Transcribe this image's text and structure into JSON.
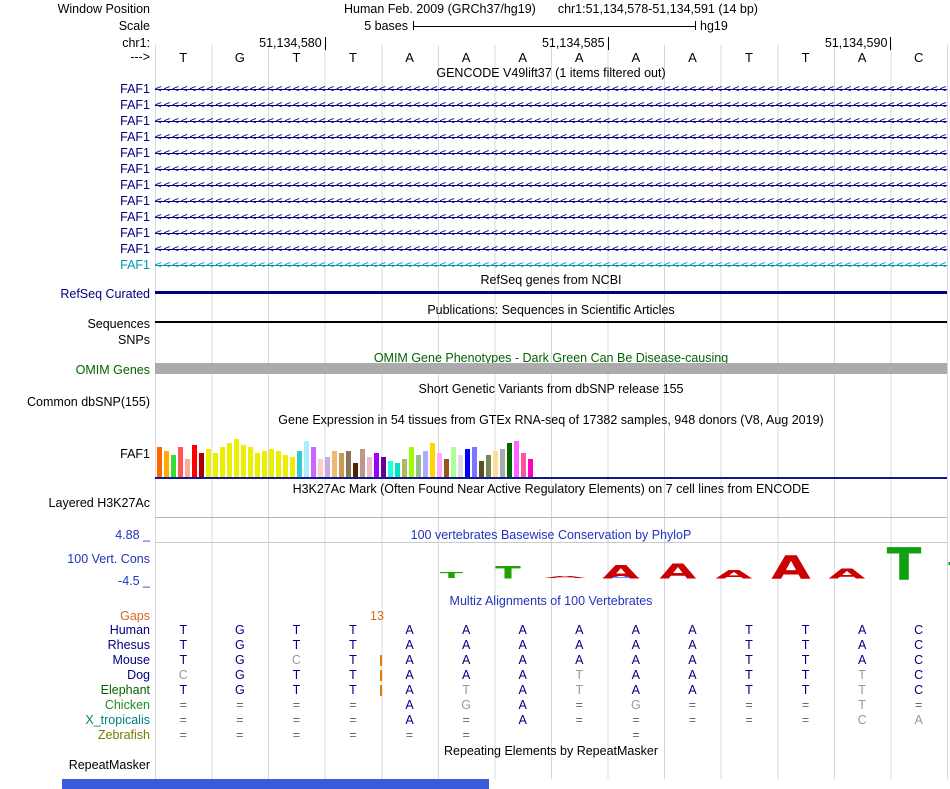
{
  "window": {
    "assembly_title": "Human Feb. 2009 (GRCh37/hg19)",
    "position": "chr1:51,134,578-51,134,591 (14 bp)",
    "scale_bases": "5 bases",
    "assembly_short": "hg19"
  },
  "gutter": {
    "window_position": "Window Position",
    "scale": "Scale",
    "chromosome": "chr1:",
    "direction": "--->"
  },
  "ruler": {
    "ticks": [
      {
        "label": "51,134,580",
        "after_col": 3
      },
      {
        "label": "51,134,585",
        "after_col": 8
      },
      {
        "label": "51,134,590",
        "after_col": 13
      }
    ],
    "bases": [
      "T",
      "G",
      "T",
      "T",
      "A",
      "A",
      "A",
      "A",
      "A",
      "A",
      "T",
      "T",
      "A",
      "C"
    ]
  },
  "tracks": {
    "gencode": {
      "title": "GENCODE V49lift37 (1 items filtered out)",
      "arrows": "<<<<<<<<<<<<<<<<<<<<<<<<<<<<<<<<<<<<<<<<<<<<<<<<<<<<<<<<<<<<<<<<<<<<<<<<<<<<<<<<<<<<<<<<<<<<<<<<<<<<<<<<<<<<<<",
      "items": [
        {
          "label": "FAF1",
          "color": "#000080"
        },
        {
          "label": "FAF1",
          "color": "#000080"
        },
        {
          "label": "FAF1",
          "color": "#000080"
        },
        {
          "label": "FAF1",
          "color": "#000080"
        },
        {
          "label": "FAF1",
          "color": "#000080"
        },
        {
          "label": "FAF1",
          "color": "#000080"
        },
        {
          "label": "FAF1",
          "color": "#000080"
        },
        {
          "label": "FAF1",
          "color": "#000080"
        },
        {
          "label": "FAF1",
          "color": "#000080"
        },
        {
          "label": "FAF1",
          "color": "#000080"
        },
        {
          "label": "FAF1",
          "color": "#000080"
        },
        {
          "label": "FAF1",
          "color": "#0099AA"
        }
      ]
    },
    "refseq": {
      "title": "RefSeq genes from NCBI",
      "label": "RefSeq Curated"
    },
    "publications": {
      "title": "Publications: Sequences in Scientific Articles",
      "label": "Sequences"
    },
    "snps": {
      "label": "SNPs"
    },
    "omim": {
      "title": "OMIM Gene Phenotypes - Dark Green Can Be Disease-causing",
      "label": "OMIM Genes"
    },
    "dbsnp": {
      "title": "Short Genetic Variants from dbSNP release 155",
      "label": "Common dbSNP(155)"
    },
    "gtex": {
      "title": "Gene Expression in 54 tissues from GTEx RNA-seq of 17382 samples, 948 donors (V8, Aug 2019)",
      "label": "FAF1",
      "bars": [
        {
          "c": "#FF6600",
          "h": 30
        },
        {
          "c": "#FFAA00",
          "h": 26
        },
        {
          "c": "#33DD33",
          "h": 22
        },
        {
          "c": "#FF5555",
          "h": 30
        },
        {
          "c": "#FFAA99",
          "h": 18
        },
        {
          "c": "#FF0000",
          "h": 32
        },
        {
          "c": "#AA0000",
          "h": 24
        },
        {
          "c": "#EEEE00",
          "h": 28
        },
        {
          "c": "#EEEE00",
          "h": 24
        },
        {
          "c": "#EEEE00",
          "h": 30
        },
        {
          "c": "#EEEE00",
          "h": 34
        },
        {
          "c": "#EEEE00",
          "h": 38
        },
        {
          "c": "#EEEE00",
          "h": 32
        },
        {
          "c": "#EEEE00",
          "h": 30
        },
        {
          "c": "#EEEE00",
          "h": 24
        },
        {
          "c": "#EEEE00",
          "h": 26
        },
        {
          "c": "#EEEE00",
          "h": 28
        },
        {
          "c": "#EEEE00",
          "h": 26
        },
        {
          "c": "#EEEE00",
          "h": 22
        },
        {
          "c": "#EEEE00",
          "h": 20
        },
        {
          "c": "#33CCCC",
          "h": 26
        },
        {
          "c": "#AAEEFF",
          "h": 36
        },
        {
          "c": "#CC66FF",
          "h": 30
        },
        {
          "c": "#FFCCCC",
          "h": 18
        },
        {
          "c": "#CCAADD",
          "h": 20
        },
        {
          "c": "#EEBB77",
          "h": 26
        },
        {
          "c": "#CC9955",
          "h": 24
        },
        {
          "c": "#8B7355",
          "h": 26
        },
        {
          "c": "#552200",
          "h": 14
        },
        {
          "c": "#BB9988",
          "h": 28
        },
        {
          "c": "#EEBBCC",
          "h": 20
        },
        {
          "c": "#9900FF",
          "h": 24
        },
        {
          "c": "#660099",
          "h": 20
        },
        {
          "c": "#22FFDD",
          "h": 16
        },
        {
          "c": "#00E5C0",
          "h": 14
        },
        {
          "c": "#AABB66",
          "h": 18
        },
        {
          "c": "#99FF00",
          "h": 30
        },
        {
          "c": "#99BB88",
          "h": 22
        },
        {
          "c": "#AAAAFF",
          "h": 26
        },
        {
          "c": "#FFD700",
          "h": 34
        },
        {
          "c": "#FFAAFF",
          "h": 24
        },
        {
          "c": "#995522",
          "h": 18
        },
        {
          "c": "#AAFF99",
          "h": 30
        },
        {
          "c": "#DDDDDD",
          "h": 22
        },
        {
          "c": "#0000FF",
          "h": 28
        },
        {
          "c": "#7777FF",
          "h": 30
        },
        {
          "c": "#555522",
          "h": 16
        },
        {
          "c": "#778855",
          "h": 22
        },
        {
          "c": "#FFDD99",
          "h": 26
        },
        {
          "c": "#AAAAAA",
          "h": 28
        },
        {
          "c": "#006600",
          "h": 34
        },
        {
          "c": "#FF66FF",
          "h": 36
        },
        {
          "c": "#FF5599",
          "h": 24
        },
        {
          "c": "#FF00BB",
          "h": 18
        }
      ]
    },
    "h3k27ac": {
      "title": "H3K27Ac Mark (Often Found Near Active Regulatory Elements) on 7 cell lines from ENCODE",
      "label": "Layered H3K27Ac"
    },
    "phylop": {
      "title": "100 vertebrates Basewise Conservation by PhyloP",
      "label": "100 Vert. Cons",
      "scale_max": "4.88 _",
      "scale_min": "-4.5 _",
      "glyphs": [
        {
          "col": 3,
          "ch": "T",
          "color": "#1FA300",
          "sx": 1.0,
          "sy": 0.22
        },
        {
          "col": 4,
          "ch": "T",
          "color": "#1FA300",
          "sx": 1.1,
          "sy": 0.5
        },
        {
          "col": 5,
          "ch": "A",
          "color": "#CC0000",
          "sx": 1.6,
          "sy": 0.08
        },
        {
          "col": 6,
          "ch": "A",
          "color": "#3344EE",
          "sx": 1.5,
          "sy": 0.14
        },
        {
          "col": 6,
          "ch": "A",
          "color": "#CC0000",
          "sx": 1.4,
          "sy": 0.55
        },
        {
          "col": 7,
          "ch": "A",
          "color": "#CC0000",
          "sx": 1.4,
          "sy": 0.6
        },
        {
          "col": 8,
          "ch": "A",
          "color": "#CC0000",
          "sx": 1.4,
          "sy": 0.35
        },
        {
          "col": 9,
          "ch": "A",
          "color": "#CC0000",
          "sx": 1.5,
          "sy": 0.95
        },
        {
          "col": 10,
          "ch": "A",
          "color": "#CC0000",
          "sx": 1.4,
          "sy": 0.4
        },
        {
          "col": 11,
          "ch": "T",
          "color": "#12A012",
          "sx": 1.5,
          "sy": 1.3
        },
        {
          "col": 12,
          "ch": "T",
          "color": "#12A012",
          "sx": 1.1,
          "sy": 0.65
        },
        {
          "col": 13,
          "ch": "A",
          "color": "#CC0000",
          "sx": 1.8,
          "sy": 0.16
        },
        {
          "col": 14,
          "ch": "A",
          "color": "#CC2200",
          "sx": 1.5,
          "sy": 0.12
        },
        {
          "col": 14,
          "ch": "A",
          "color": "#AA8800",
          "sx": 1.9,
          "sy": 0.2
        }
      ]
    },
    "multiz": {
      "title": "Multiz Alignments of 100 Vertebrates",
      "gaps_label": "Gaps",
      "gaps_count": "13",
      "letter_color": "#000080",
      "muted_color": "#999999",
      "rows": [
        {
          "name": "Human",
          "color": "#000080",
          "insert": false,
          "muted": [],
          "cells": [
            "T",
            "G",
            "T",
            "T",
            "A",
            "A",
            "A",
            "A",
            "A",
            "A",
            "T",
            "T",
            "A",
            "C"
          ]
        },
        {
          "name": "Rhesus",
          "color": "#000080",
          "insert": false,
          "muted": [],
          "cells": [
            "T",
            "G",
            "T",
            "T",
            "A",
            "A",
            "A",
            "A",
            "A",
            "A",
            "T",
            "T",
            "A",
            "C"
          ]
        },
        {
          "name": "Mouse",
          "color": "#000080",
          "insert": true,
          "muted": [
            2
          ],
          "cells": [
            "T",
            "G",
            "C",
            "T",
            "A",
            "A",
            "A",
            "A",
            "A",
            "A",
            "T",
            "T",
            "A",
            "C"
          ]
        },
        {
          "name": "Dog",
          "color": "#000080",
          "insert": true,
          "muted": [
            0,
            7,
            12
          ],
          "cells": [
            "C",
            "G",
            "T",
            "T",
            "A",
            "A",
            "A",
            "T",
            "A",
            "A",
            "T",
            "T",
            "T",
            "C"
          ]
        },
        {
          "name": "Elephant",
          "color": "#006400",
          "insert": true,
          "muted": [
            5,
            7,
            12
          ],
          "cells": [
            "T",
            "G",
            "T",
            "T",
            "A",
            "T",
            "A",
            "T",
            "A",
            "A",
            "T",
            "T",
            "T",
            "C"
          ]
        },
        {
          "name": "Chicken",
          "color": "#228B22",
          "insert": false,
          "muted": [
            5,
            8,
            12
          ],
          "cells": [
            "=",
            "=",
            "=",
            "=",
            "A",
            "G",
            "A",
            "=",
            "G",
            "=",
            "=",
            "=",
            "T",
            "="
          ]
        },
        {
          "name": "X_tropicalis",
          "color": "#008080",
          "insert": false,
          "muted": [
            12,
            13
          ],
          "cells": [
            "=",
            "=",
            "=",
            "=",
            "A",
            "=",
            "A",
            "=",
            "=",
            "=",
            "=",
            "=",
            "C",
            "A"
          ]
        },
        {
          "name": "Zebrafish",
          "color": "#7A7A00",
          "insert": false,
          "muted": [],
          "cells": [
            "=",
            "=",
            "=",
            "=",
            "=",
            "=",
            "",
            "",
            "=",
            "",
            "",
            "",
            "",
            ""
          ]
        }
      ]
    },
    "repeatmasker": {
      "title": "Repeating Elements by RepeatMasker",
      "label": "RepeatMasker"
    }
  },
  "footer": {
    "bar_color": "#3B5BDB"
  }
}
